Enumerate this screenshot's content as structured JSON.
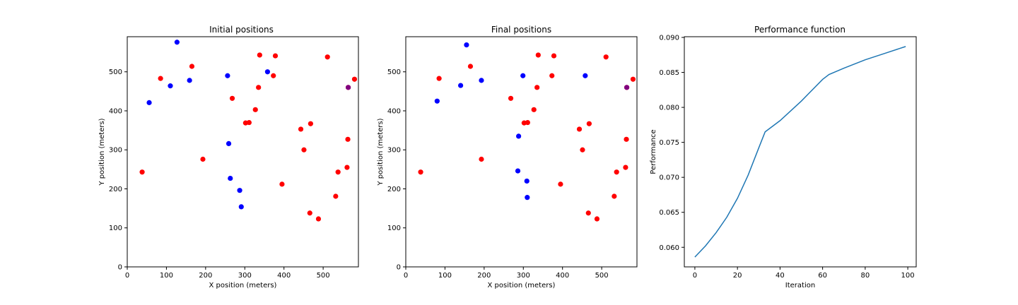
{
  "colors": {
    "red": "#ff0000",
    "blue": "#0000ff",
    "overlap": "#800080",
    "line": "#1f77b4"
  },
  "chart_data": [
    {
      "type": "scatter",
      "title": "Initial positions",
      "xlabel": "X position (meters)",
      "ylabel": "Y position (meters)",
      "xlim": [
        0,
        590
      ],
      "ylim": [
        0,
        590
      ],
      "xticks": [
        0,
        100,
        200,
        300,
        400,
        500
      ],
      "yticks": [
        0,
        100,
        200,
        300,
        400,
        500
      ],
      "grid": false,
      "series": [
        {
          "color": "red",
          "x": [
            38,
            85,
            165,
            193,
            268,
            302,
            311,
            327,
            335,
            338,
            373,
            378,
            395,
            443,
            451,
            466,
            468,
            488,
            511,
            532,
            538,
            561,
            563,
            564,
            580
          ],
          "y": [
            243,
            483,
            514,
            276,
            432,
            369,
            370,
            403,
            460,
            543,
            490,
            541,
            212,
            353,
            300,
            138,
            367,
            123,
            538,
            181,
            243,
            255,
            327,
            460,
            481
          ]
        },
        {
          "color": "blue",
          "x": [
            56,
            110,
            127,
            159,
            256,
            259,
            263,
            287,
            291,
            358
          ],
          "y": [
            421,
            464,
            576,
            478,
            490,
            316,
            227,
            196,
            154,
            500
          ]
        },
        {
          "color": "overlap",
          "x": [
            564
          ],
          "y": [
            460
          ]
        }
      ]
    },
    {
      "type": "scatter",
      "title": "Final positions",
      "xlabel": "X position (meters)",
      "ylabel": "Y position (meters)",
      "xlim": [
        0,
        590
      ],
      "ylim": [
        0,
        590
      ],
      "xticks": [
        0,
        100,
        200,
        300,
        400,
        500
      ],
      "yticks": [
        0,
        100,
        200,
        300,
        400,
        500
      ],
      "grid": false,
      "series": [
        {
          "color": "red",
          "x": [
            38,
            85,
            165,
            193,
            268,
            302,
            311,
            327,
            335,
            338,
            373,
            378,
            395,
            443,
            451,
            466,
            468,
            488,
            511,
            532,
            538,
            561,
            563,
            564,
            580
          ],
          "y": [
            243,
            483,
            514,
            276,
            432,
            369,
            370,
            403,
            460,
            543,
            490,
            541,
            212,
            353,
            300,
            138,
            367,
            123,
            538,
            181,
            243,
            255,
            327,
            460,
            481
          ]
        },
        {
          "color": "blue",
          "x": [
            80,
            140,
            155,
            193,
            286,
            288,
            299,
            309,
            310,
            458
          ],
          "y": [
            425,
            465,
            569,
            478,
            246,
            335,
            490,
            220,
            178,
            490
          ]
        },
        {
          "color": "overlap",
          "x": [
            564
          ],
          "y": [
            460
          ]
        }
      ]
    },
    {
      "type": "line",
      "title": "Performance function",
      "xlabel": "Iteration",
      "ylabel": "Performance",
      "xlim": [
        -4.95,
        103.95
      ],
      "ylim": [
        0.0572,
        0.0901
      ],
      "xticks": [
        0,
        20,
        40,
        60,
        80,
        100
      ],
      "yticks": [
        0.06,
        0.065,
        0.07,
        0.075,
        0.08,
        0.085,
        0.09
      ],
      "ytick_labels": [
        "0.060",
        "0.065",
        "0.070",
        "0.075",
        "0.080",
        "0.085",
        "0.090"
      ],
      "grid": false,
      "series": [
        {
          "color": "line",
          "x": [
            0,
            5,
            10,
            15,
            20,
            25,
            30,
            33,
            40,
            50,
            60,
            63,
            70,
            80,
            90,
            99
          ],
          "y": [
            0.0586,
            0.0602,
            0.0621,
            0.0643,
            0.067,
            0.0703,
            0.0742,
            0.0765,
            0.0781,
            0.0809,
            0.084,
            0.0847,
            0.0856,
            0.0868,
            0.0878,
            0.0887
          ]
        }
      ]
    }
  ]
}
